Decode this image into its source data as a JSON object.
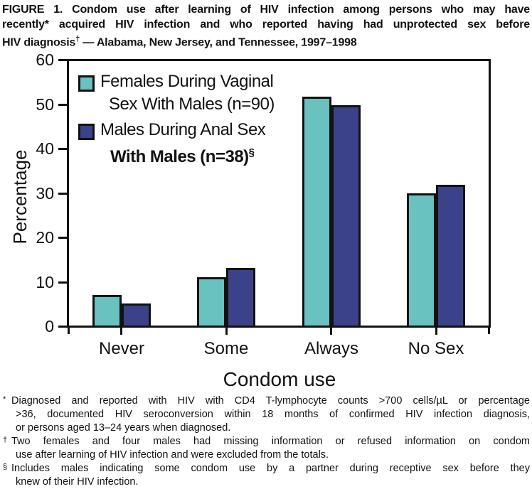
{
  "title": {
    "line1": "FIGURE 1. Condom use after learning of HIV infection among persons who may have",
    "line2": "recently* acquired HIV infection and who reported having had unprotected sex before",
    "line3_pre": "HIV diagnosis",
    "line3_sup": "†",
    "line3_post": " — Alabama, New Jersey, and Tennessee, 1997–1998"
  },
  "chart_data": {
    "type": "bar",
    "title": "Condom use after learning of HIV infection among persons who may have recently acquired HIV infection and who reported having had unprotected sex before HIV diagnosis — Alabama, New Jersey, and Tennessee, 1997–1998",
    "categories": [
      "Never",
      "Some",
      "Always",
      "No Sex"
    ],
    "series": [
      {
        "key": "females",
        "name": "Females During Vaginal Sex With Males (n=90)",
        "color": "#69c1c0",
        "values": [
          7,
          11,
          52,
          30
        ]
      },
      {
        "key": "males",
        "name": "Males During Anal Sex With Males (n=38)§",
        "color": "#3b4289",
        "values": [
          5,
          13,
          50,
          32
        ]
      }
    ],
    "xlabel": "Condom use",
    "ylabel": "Percentage",
    "ylim": [
      0,
      60
    ],
    "yticks": [
      0,
      10,
      20,
      30,
      40,
      50,
      60
    ],
    "grid": false,
    "legend_position": "upper-left-inside",
    "bar_outline_color": "#121212",
    "ink_color": "#121212",
    "background_color": "#ffffff"
  },
  "legend": {
    "entries": [
      {
        "swatch_color": "#69c1c0",
        "line1": "Females During Vaginal",
        "line2": "Sex With Males (n=90)",
        "line2_sup": "",
        "line2_bold": false
      },
      {
        "swatch_color": "#3b4289",
        "line1": "Males During Anal Sex",
        "line2": "With Males (n=38)",
        "line2_sup": "§",
        "line2_bold": true
      }
    ]
  },
  "footnotes": [
    {
      "marker": "*",
      "lines": [
        {
          "text": "Diagnosed and reported with HIV with CD4 T-lymphocyte counts >700 cells/µL or percentage",
          "justify": true,
          "indent": false
        },
        {
          "text": ">36, documented HIV seroconversion within 18 months of confirmed HIV infection diagnosis,",
          "justify": true,
          "indent": true
        },
        {
          "text": "or persons aged 13–24 years when diagnosed.",
          "justify": false,
          "indent": true
        }
      ]
    },
    {
      "marker": "†",
      "lines": [
        {
          "text": "Two females and four males had missing information or refused information on condom",
          "justify": true,
          "indent": false
        },
        {
          "text": "use after learning of HIV infection and were excluded from the totals.",
          "justify": false,
          "indent": true
        }
      ]
    },
    {
      "marker": "§",
      "lines": [
        {
          "text": "Includes males indicating some condom use by a partner during receptive sex before they",
          "justify": true,
          "indent": false
        },
        {
          "text": "knew of their HIV infection.",
          "justify": false,
          "indent": true
        }
      ]
    }
  ]
}
